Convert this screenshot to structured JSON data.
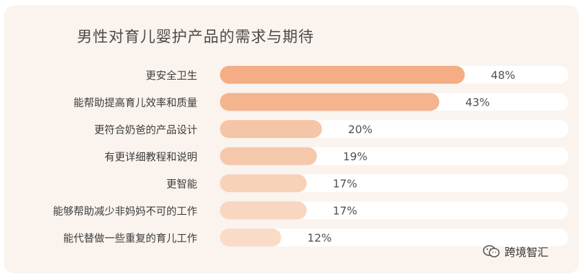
{
  "chart_data": {
    "type": "bar",
    "orientation": "horizontal",
    "title": "男性对育儿婴护产品的需求与期待",
    "categories": [
      "更安全卫生",
      "能帮助提高育儿效率和质量",
      "更符合奶爸的产品设计",
      "有更详细教程和说明",
      "更智能",
      "能够帮助减少非妈妈不可的工作",
      "能代替做一些重复的育儿工作"
    ],
    "values": [
      48,
      43,
      20,
      19,
      17,
      17,
      12
    ],
    "value_labels": [
      "48%",
      "43%",
      "20%",
      "19%",
      "17%",
      "17%",
      "12%"
    ],
    "xlim": [
      0,
      100
    ],
    "grid": false,
    "legend": "none",
    "colors": {
      "bar_fills": [
        "#f4ad84",
        "#f3b48e",
        "#f6c4a6",
        "#f6c8ab",
        "#f8d1b9",
        "#f8d6c0",
        "#f9dbc8"
      ],
      "track": "#ffffff",
      "label_text": "#3c3c3c",
      "value_text": "#505050",
      "background": "#faf3ee"
    }
  },
  "watermark": {
    "text": "跨境智汇",
    "icon": "wechat-logo-icon"
  }
}
